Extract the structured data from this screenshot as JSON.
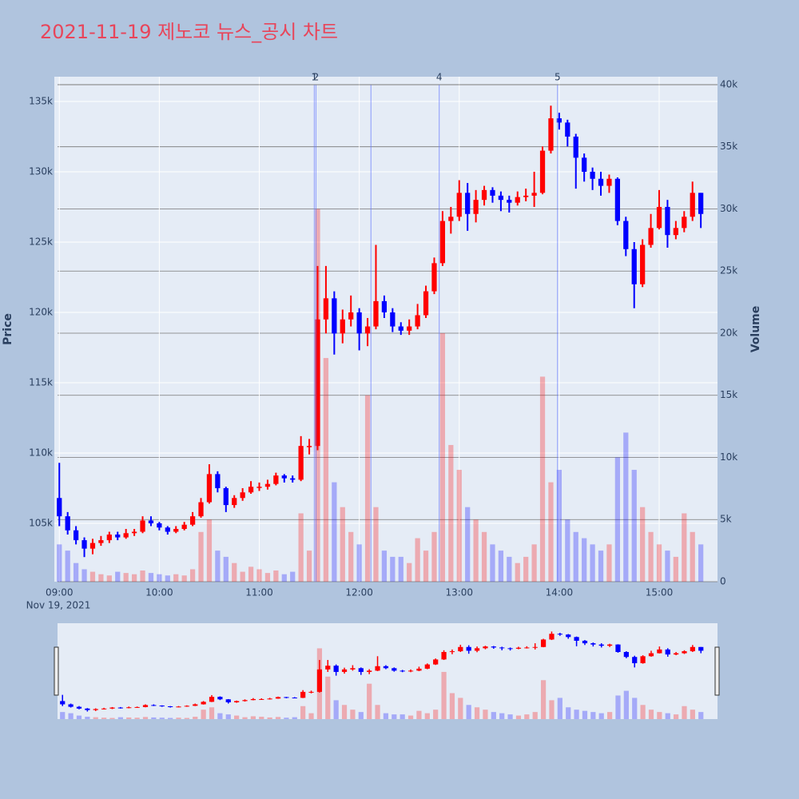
{
  "chart_data": {
    "type": "candlestick",
    "title": "2021-11-19 제노코 뉴스_공시 차트",
    "y_axis_label": "Price",
    "y2_axis_label": "Volume",
    "x_date_label": "Nov 19, 2021",
    "up_color": "#ff0000",
    "down_color": "#0000ff",
    "x": [
      "2021-11-19 09:00",
      "2021-11-19 09:05",
      "2021-11-19 09:10",
      "2021-11-19 09:15",
      "2021-11-19 09:20",
      "2021-11-19 09:25",
      "2021-11-19 09:30",
      "2021-11-19 09:35",
      "2021-11-19 09:40",
      "2021-11-19 09:45",
      "2021-11-19 09:50",
      "2021-11-19 09:55",
      "2021-11-19 10:00",
      "2021-11-19 10:05",
      "2021-11-19 10:10",
      "2021-11-19 10:15",
      "2021-11-19 10:20",
      "2021-11-19 10:25",
      "2021-11-19 10:30",
      "2021-11-19 10:35",
      "2021-11-19 10:40",
      "2021-11-19 10:45",
      "2021-11-19 10:50",
      "2021-11-19 10:55",
      "2021-11-19 11:00",
      "2021-11-19 11:05",
      "2021-11-19 11:10",
      "2021-11-19 11:15",
      "2021-11-19 11:20",
      "2021-11-19 11:25",
      "2021-11-19 11:30",
      "2021-11-19 11:35",
      "2021-11-19 11:40",
      "2021-11-19 11:45",
      "2021-11-19 11:50",
      "2021-11-19 11:55",
      "2021-11-19 12:00",
      "2021-11-19 12:05",
      "2021-11-19 12:10",
      "2021-11-19 12:15",
      "2021-11-19 12:20",
      "2021-11-19 12:25",
      "2021-11-19 12:30",
      "2021-11-19 12:35",
      "2021-11-19 12:40",
      "2021-11-19 12:45",
      "2021-11-19 12:50",
      "2021-11-19 12:55",
      "2021-11-19 13:00",
      "2021-11-19 13:05",
      "2021-11-19 13:10",
      "2021-11-19 13:15",
      "2021-11-19 13:20",
      "2021-11-19 13:25",
      "2021-11-19 13:30",
      "2021-11-19 13:35",
      "2021-11-19 13:40",
      "2021-11-19 13:45",
      "2021-11-19 13:50",
      "2021-11-19 13:55",
      "2021-11-19 14:00",
      "2021-11-19 14:05",
      "2021-11-19 14:10",
      "2021-11-19 14:15",
      "2021-11-19 14:20",
      "2021-11-19 14:25",
      "2021-11-19 14:30",
      "2021-11-19 14:35",
      "2021-11-19 14:40",
      "2021-11-19 14:45",
      "2021-11-19 14:50",
      "2021-11-19 14:55",
      "2021-11-19 15:00",
      "2021-11-19 15:05",
      "2021-11-19 15:10",
      "2021-11-19 15:15",
      "2021-11-19 15:20",
      "2021-11-19 15:25"
    ],
    "open": [
      106800,
      105500,
      104500,
      103800,
      103200,
      103600,
      103800,
      104200,
      104000,
      104300,
      104400,
      105200,
      105000,
      104700,
      104400,
      104600,
      104900,
      105500,
      106500,
      108500,
      107500,
      106300,
      106800,
      107200,
      107600,
      107600,
      107800,
      108400,
      108200,
      108100,
      110500,
      110500,
      119500,
      121000,
      118500,
      119500,
      120000,
      118500,
      119000,
      120800,
      120000,
      119000,
      118700,
      119000,
      119800,
      121500,
      123500,
      126500,
      126800,
      128500,
      127000,
      128000,
      128700,
      128300,
      128000,
      127800,
      128200,
      128300,
      128500,
      131500,
      133800,
      133500,
      132500,
      131000,
      130000,
      129500,
      129000,
      129500,
      126500,
      124500,
      122000,
      124800,
      126000,
      127500,
      125500,
      126000,
      126800,
      128500
    ],
    "high": [
      109300,
      105800,
      104800,
      104000,
      103900,
      104100,
      104400,
      104400,
      104600,
      104600,
      105500,
      105500,
      105100,
      104800,
      104800,
      105100,
      105800,
      106800,
      109200,
      108700,
      107600,
      107000,
      107500,
      108000,
      107900,
      108100,
      108600,
      108500,
      108400,
      111200,
      111000,
      123300,
      123300,
      121500,
      120200,
      121200,
      120300,
      119600,
      124800,
      121200,
      120300,
      119300,
      119500,
      120600,
      121900,
      123900,
      127200,
      127500,
      129400,
      129200,
      128700,
      129000,
      128900,
      128600,
      128300,
      128600,
      128800,
      130000,
      131800,
      134700,
      134200,
      133700,
      132700,
      131300,
      130300,
      130000,
      129800,
      129600,
      126800,
      125000,
      125200,
      127000,
      128700,
      128000,
      126500,
      127200,
      129300,
      128500
    ],
    "low": [
      104800,
      104200,
      103500,
      102600,
      102800,
      103400,
      103600,
      103800,
      103900,
      104100,
      104300,
      104800,
      104500,
      104200,
      104300,
      104500,
      104800,
      105400,
      106400,
      107200,
      105800,
      106100,
      106600,
      107100,
      107300,
      107400,
      107700,
      107900,
      107900,
      108000,
      109900,
      110200,
      118500,
      117000,
      117800,
      119000,
      117300,
      117600,
      118800,
      119600,
      118600,
      118400,
      118400,
      118800,
      119600,
      121300,
      123300,
      125600,
      126500,
      125800,
      126400,
      127600,
      127800,
      127200,
      127100,
      127600,
      127900,
      127500,
      128400,
      131300,
      133000,
      131800,
      128800,
      129300,
      128700,
      128300,
      128500,
      126200,
      124000,
      120300,
      121800,
      124600,
      125900,
      124600,
      125200,
      125700,
      126500,
      126000
    ],
    "close": [
      105500,
      104500,
      103800,
      103200,
      103600,
      103800,
      104200,
      104000,
      104300,
      104400,
      105200,
      105000,
      104700,
      104400,
      104600,
      104900,
      105500,
      106500,
      108500,
      107500,
      106300,
      106800,
      107200,
      107600,
      107600,
      107800,
      108400,
      108200,
      108100,
      110500,
      110500,
      119500,
      121000,
      118500,
      119500,
      120000,
      118500,
      119000,
      120800,
      120000,
      119000,
      118700,
      119000,
      119800,
      121500,
      123500,
      126500,
      126800,
      128500,
      127000,
      128000,
      128700,
      128300,
      128000,
      127800,
      128200,
      128300,
      128500,
      131500,
      133800,
      133500,
      132500,
      131000,
      130000,
      129500,
      129000,
      129500,
      126500,
      124500,
      122000,
      124800,
      126000,
      127500,
      125500,
      126000,
      126800,
      128500,
      127000
    ],
    "volume": [
      3000,
      2500,
      1500,
      1000,
      800,
      600,
      500,
      800,
      700,
      600,
      900,
      700,
      600,
      500,
      600,
      500,
      1000,
      4000,
      5000,
      2500,
      2000,
      1500,
      800,
      1200,
      1000,
      700,
      900,
      600,
      800,
      5500,
      2500,
      30000,
      18000,
      8000,
      6000,
      4000,
      3000,
      15000,
      6000,
      2500,
      2000,
      2000,
      1500,
      3500,
      2500,
      4000,
      20000,
      11000,
      9000,
      6000,
      5000,
      4000,
      3000,
      2500,
      2000,
      1500,
      2000,
      3000,
      16500,
      8000,
      9000,
      5000,
      4000,
      3500,
      3000,
      2500,
      3000,
      10000,
      12000,
      9000,
      6000,
      4000,
      3000,
      2500,
      2000,
      5500,
      4000,
      3000
    ],
    "annotations": [
      {
        "x": "2021-11-19 11:33",
        "label": "1"
      },
      {
        "x": "2021-11-19 11:34",
        "label": "2"
      },
      {
        "x": "2021-11-19 12:07",
        "label": null
      },
      {
        "x": "2021-11-19 12:48",
        "label": "4"
      },
      {
        "x": "2021-11-19 13:59",
        "label": "5"
      }
    ],
    "xlim": [
      "2021-11-19 08:57",
      "2021-11-19 15:35"
    ],
    "xticks": [
      {
        "value": "2021-11-19 09:00",
        "label": "09:00"
      },
      {
        "value": "2021-11-19 10:00",
        "label": "10:00"
      },
      {
        "value": "2021-11-19 11:00",
        "label": "11:00"
      },
      {
        "value": "2021-11-19 12:00",
        "label": "12:00"
      },
      {
        "value": "2021-11-19 13:00",
        "label": "13:00"
      },
      {
        "value": "2021-11-19 14:00",
        "label": "14:00"
      },
      {
        "value": "2021-11-19 15:00",
        "label": "15:00"
      }
    ],
    "ylim": [
      100850,
      136760
    ],
    "yticks": [
      {
        "value": 105000,
        "label": "105k"
      },
      {
        "value": 110000,
        "label": "110k"
      },
      {
        "value": 115000,
        "label": "115k"
      },
      {
        "value": 120000,
        "label": "120k"
      },
      {
        "value": 125000,
        "label": "125k"
      },
      {
        "value": 130000,
        "label": "130k"
      },
      {
        "value": 135000,
        "label": "135k"
      }
    ],
    "y2lim": [
      0,
      40640
    ],
    "y2ticks": [
      0,
      {
        "value": 5000,
        "label": "5k"
      },
      {
        "value": 10000,
        "label": "10k"
      },
      {
        "value": 15000,
        "label": "15k"
      },
      {
        "value": 20000,
        "label": "20k"
      },
      {
        "value": 25000,
        "label": "25k"
      },
      {
        "value": 30000,
        "label": "30k"
      },
      {
        "value": 35000,
        "label": "35k"
      },
      {
        "value": 40000,
        "label": "40k"
      }
    ],
    "grid": true,
    "range_slider": true
  }
}
